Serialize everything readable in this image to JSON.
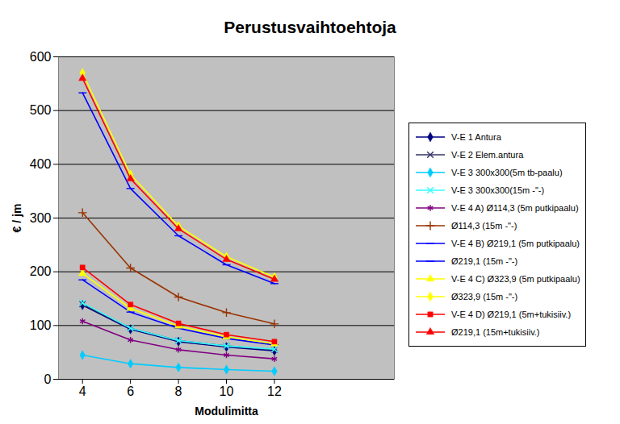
{
  "chart_data": {
    "type": "line",
    "title": "Perustusvaihtoehtoja",
    "x_label": "Modulimitta",
    "y_label": "€ / jm",
    "x": [
      4,
      6,
      8,
      10,
      12
    ],
    "xlim": [
      3,
      17
    ],
    "xticks": [
      4,
      6,
      8,
      10,
      12
    ],
    "ylim": [
      0,
      600
    ],
    "yticks": [
      0,
      100,
      200,
      300,
      400,
      500,
      600
    ],
    "grid": true,
    "legend": "right",
    "series": [
      {
        "name": "V-E 1 Antura",
        "color": "#000080",
        "marker": "diamond",
        "values": [
          138,
          93,
          70,
          60,
          53
        ]
      },
      {
        "name": "V-E 2 Elem.antura",
        "color": "#333366",
        "marker": "times",
        "values": [
          140,
          95,
          72,
          62,
          55
        ]
      },
      {
        "name": "V-E 3 300x300(5m tb-paalu)",
        "color": "#00ccff",
        "marker": "diamond",
        "values": [
          45,
          29,
          22,
          18,
          15
        ]
      },
      {
        "name": "V-E 3 300x300(15m -\"-)",
        "color": "#33ffff",
        "marker": "times",
        "values": [
          142,
          95,
          72,
          62,
          56
        ]
      },
      {
        "name": "V-E 4 A) Ø114,3 (5m putkipaalu)",
        "color": "#800080",
        "marker": "asterisk",
        "values": [
          108,
          73,
          55,
          45,
          38
        ]
      },
      {
        "name": "Ø114,3 (15m -\"-)",
        "color": "#993300",
        "marker": "plus",
        "values": [
          310,
          207,
          153,
          124,
          103
        ]
      },
      {
        "name": "V-E 4 B) Ø219,1 (5m putkipaalu)",
        "color": "#0000ff",
        "marker": "dash",
        "values": [
          185,
          125,
          95,
          76,
          64
        ]
      },
      {
        "name": "Ø219,1 (15m -\"-)",
        "color": "#0000ff",
        "marker": "dash",
        "values": [
          533,
          355,
          267,
          213,
          178
        ]
      },
      {
        "name": "V-E 4 C) Ø323,9 (5m putkipaalu)",
        "color": "#ffff00",
        "marker": "triangle",
        "values": [
          197,
          132,
          99,
          79,
          66
        ]
      },
      {
        "name": "Ø323,9 (15m -\"-)",
        "color": "#ffff00",
        "marker": "diamond",
        "values": [
          570,
          381,
          285,
          228,
          190
        ]
      },
      {
        "name": "V-E 4 D) Ø219,1 (5m+tukisiiv.)",
        "color": "#ff0000",
        "marker": "square",
        "values": [
          208,
          139,
          104,
          83,
          70
        ]
      },
      {
        "name": "Ø219,1 (15m+tukisiiv.)",
        "color": "#ff0000",
        "marker": "triangle",
        "values": [
          560,
          373,
          280,
          223,
          186
        ]
      }
    ]
  }
}
